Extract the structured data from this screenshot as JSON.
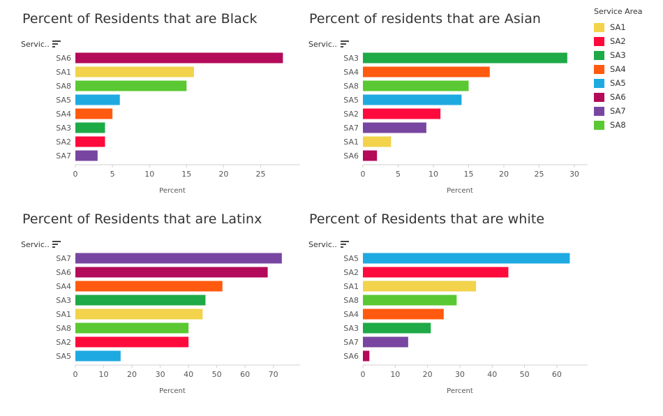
{
  "colors": {
    "SA1": "#F2D34B",
    "SA2": "#FF0A3C",
    "SA3": "#1EAA46",
    "SA4": "#FF5A0F",
    "SA5": "#1EAAE1",
    "SA6": "#B40A5A",
    "SA7": "#7846A0",
    "SA8": "#5AC832"
  },
  "legend": {
    "title": "Service Area",
    "items": [
      "SA1",
      "SA2",
      "SA3",
      "SA4",
      "SA5",
      "SA6",
      "SA7",
      "SA8"
    ]
  },
  "chart_data": [
    {
      "type": "bar",
      "orientation": "horizontal",
      "title": "Percent of Residents that are Black",
      "row_header": "Servic..",
      "xlabel": "Percent",
      "categories": [
        "SA6",
        "SA1",
        "SA8",
        "SA5",
        "SA4",
        "SA3",
        "SA2",
        "SA7"
      ],
      "values": [
        28,
        16,
        15,
        6,
        5,
        4,
        4,
        3
      ],
      "xlim": [
        0,
        29
      ],
      "ticks": [
        0,
        5,
        10,
        15,
        20,
        25
      ]
    },
    {
      "type": "bar",
      "orientation": "horizontal",
      "title": "Percent of residents that are Asian",
      "row_header": "Servic..",
      "xlabel": "Percent",
      "categories": [
        "SA3",
        "SA4",
        "SA8",
        "SA5",
        "SA2",
        "SA7",
        "SA1",
        "SA6"
      ],
      "values": [
        29,
        18,
        15,
        14,
        11,
        9,
        4,
        2
      ],
      "xlim": [
        0,
        30.5
      ],
      "ticks": [
        0,
        5,
        10,
        15,
        20,
        25,
        30
      ]
    },
    {
      "type": "bar",
      "orientation": "horizontal",
      "title": "Percent of Residents that are Latinx",
      "row_header": "Servic..",
      "xlabel": "Percent",
      "categories": [
        "SA7",
        "SA6",
        "SA4",
        "SA3",
        "SA1",
        "SA8",
        "SA2",
        "SA5"
      ],
      "values": [
        73,
        68,
        52,
        46,
        45,
        40,
        40,
        16
      ],
      "xlim": [
        0,
        76
      ],
      "ticks": [
        0,
        10,
        20,
        30,
        40,
        50,
        60,
        70
      ]
    },
    {
      "type": "bar",
      "orientation": "horizontal",
      "title": "Percent of Residents that are white",
      "row_header": "Servic..",
      "xlabel": "Percent",
      "categories": [
        "SA5",
        "SA2",
        "SA1",
        "SA8",
        "SA4",
        "SA3",
        "SA7",
        "SA6"
      ],
      "values": [
        64,
        45,
        35,
        29,
        25,
        21,
        14,
        2
      ],
      "xlim": [
        0,
        66.5
      ],
      "ticks": [
        0,
        10,
        20,
        30,
        40,
        50,
        60
      ]
    }
  ]
}
